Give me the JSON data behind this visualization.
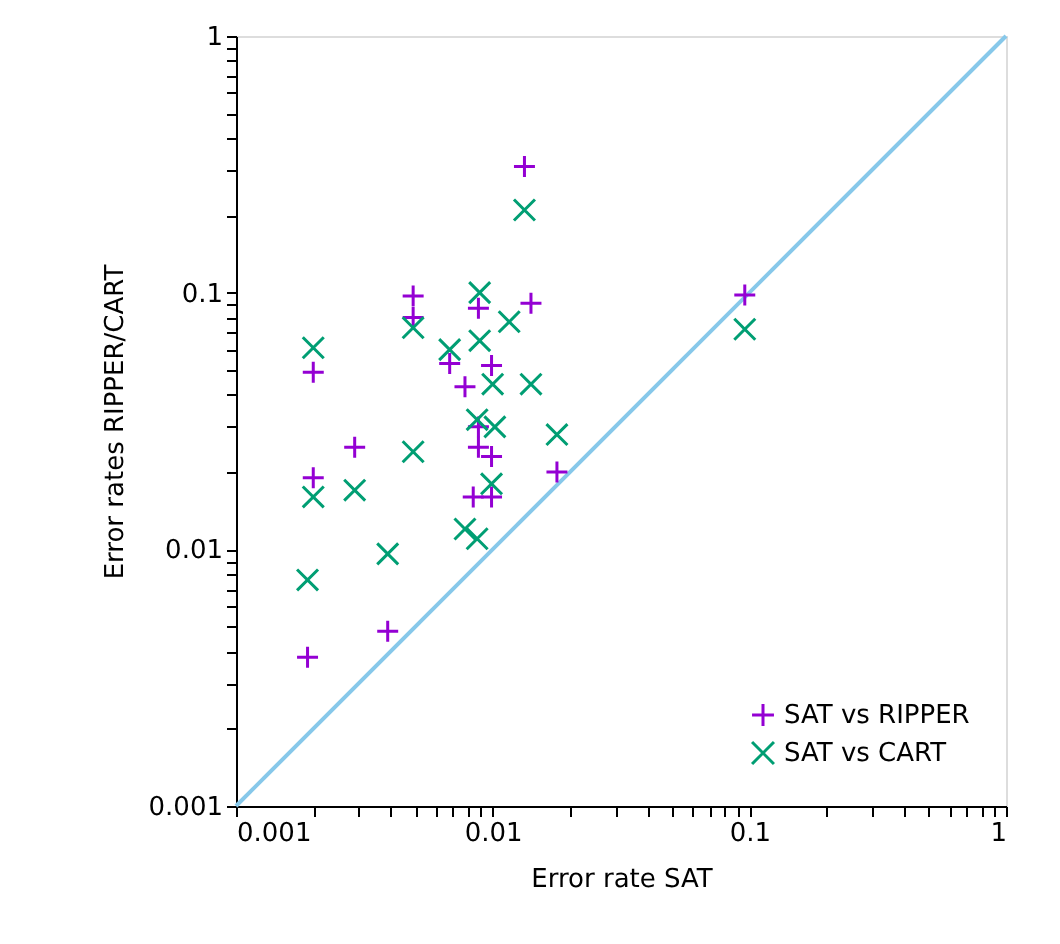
{
  "chart_data": {
    "type": "scatter",
    "xlabel": "Error rate SAT",
    "ylabel": "Error rates RIPPER/CART",
    "log": "xy",
    "grid": false,
    "legend": "bottom right",
    "xlim": [
      0.001,
      1
    ],
    "ylim": [
      0.001,
      1
    ],
    "xticks": [
      0.001,
      {
        "value": 0.002,
        "label": null
      },
      {
        "value": 0.003,
        "label": null
      },
      {
        "value": 0.004,
        "label": null
      },
      {
        "value": 0.005,
        "label": null
      },
      {
        "value": 0.006,
        "label": null
      },
      {
        "value": 0.007,
        "label": null
      },
      {
        "value": 0.008,
        "label": null
      },
      {
        "value": 0.009,
        "label": null
      },
      0.01,
      {
        "value": 0.02,
        "label": null
      },
      {
        "value": 0.03,
        "label": null
      },
      {
        "value": 0.04,
        "label": null
      },
      {
        "value": 0.05,
        "label": null
      },
      {
        "value": 0.06,
        "label": null
      },
      {
        "value": 0.07,
        "label": null
      },
      {
        "value": 0.08,
        "label": null
      },
      {
        "value": 0.09,
        "label": null
      },
      0.1,
      {
        "value": 0.2,
        "label": null
      },
      {
        "value": 0.3,
        "label": null
      },
      {
        "value": 0.4,
        "label": null
      },
      {
        "value": 0.5,
        "label": null
      },
      {
        "value": 0.6,
        "label": null
      },
      {
        "value": 0.7,
        "label": null
      },
      {
        "value": 0.8,
        "label": null
      },
      {
        "value": 0.9,
        "label": null
      },
      1
    ],
    "yticks": [
      0.001,
      {
        "value": 0.002,
        "label": null
      },
      {
        "value": 0.003,
        "label": null
      },
      {
        "value": 0.004,
        "label": null
      },
      {
        "value": 0.005,
        "label": null
      },
      {
        "value": 0.006,
        "label": null
      },
      {
        "value": 0.007,
        "label": null
      },
      {
        "value": 0.008,
        "label": null
      },
      {
        "value": 0.009,
        "label": null
      },
      0.01,
      {
        "value": 0.02,
        "label": null
      },
      {
        "value": 0.03,
        "label": null
      },
      {
        "value": 0.04,
        "label": null
      },
      {
        "value": 0.05,
        "label": null
      },
      {
        "value": 0.06,
        "label": null
      },
      {
        "value": 0.07,
        "label": null
      },
      {
        "value": 0.08,
        "label": null
      },
      {
        "value": 0.09,
        "label": null
      },
      0.1,
      {
        "value": 0.2,
        "label": null
      },
      {
        "value": 0.3,
        "label": null
      },
      {
        "value": 0.4,
        "label": null
      },
      {
        "value": 0.5,
        "label": null
      },
      {
        "value": 0.6,
        "label": null
      },
      {
        "value": 0.7,
        "label": null
      },
      {
        "value": 0.8,
        "label": null
      },
      {
        "value": 0.9,
        "label": null
      },
      1
    ],
    "series": [
      {
        "type": "line",
        "color": "#87c8ea",
        "marker": "none",
        "line_style": "solid",
        "x": [
          0.001,
          1
        ],
        "values": [
          0.001,
          1
        ]
      },
      {
        "name": "SAT vs RIPPER",
        "color": "#9400d3",
        "marker": "plus",
        "x": [
          0.0133,
          0.0049,
          0.0049,
          0.0088,
          0.0141,
          0.002,
          0.0068,
          0.0099,
          0.0078,
          0.0088,
          0.0088,
          0.0099,
          0.0029,
          0.002,
          0.0178,
          0.0084,
          0.0099,
          0.0039,
          0.0019,
          0.096
        ],
        "values": [
          0.31,
          0.097,
          0.08,
          0.087,
          0.091,
          0.049,
          0.053,
          0.052,
          0.043,
          0.03,
          0.025,
          0.023,
          0.025,
          0.019,
          0.02,
          0.016,
          0.016,
          0.0048,
          0.0038,
          0.098
        ]
      },
      {
        "name": "SAT vs CART",
        "color": "#009e73",
        "marker": "cross",
        "x": [
          0.0133,
          0.0089,
          0.0049,
          0.002,
          0.0116,
          0.0089,
          0.0068,
          0.01,
          0.0141,
          0.0087,
          0.0102,
          0.0178,
          0.0049,
          0.0029,
          0.002,
          0.0099,
          0.0078,
          0.0087,
          0.0039,
          0.0019,
          0.096
        ],
        "values": [
          0.21,
          0.1,
          0.073,
          0.061,
          0.077,
          0.065,
          0.06,
          0.044,
          0.044,
          0.032,
          0.03,
          0.028,
          0.024,
          0.017,
          0.016,
          0.018,
          0.012,
          0.011,
          0.0096,
          0.0076,
          0.072
        ]
      }
    ]
  }
}
